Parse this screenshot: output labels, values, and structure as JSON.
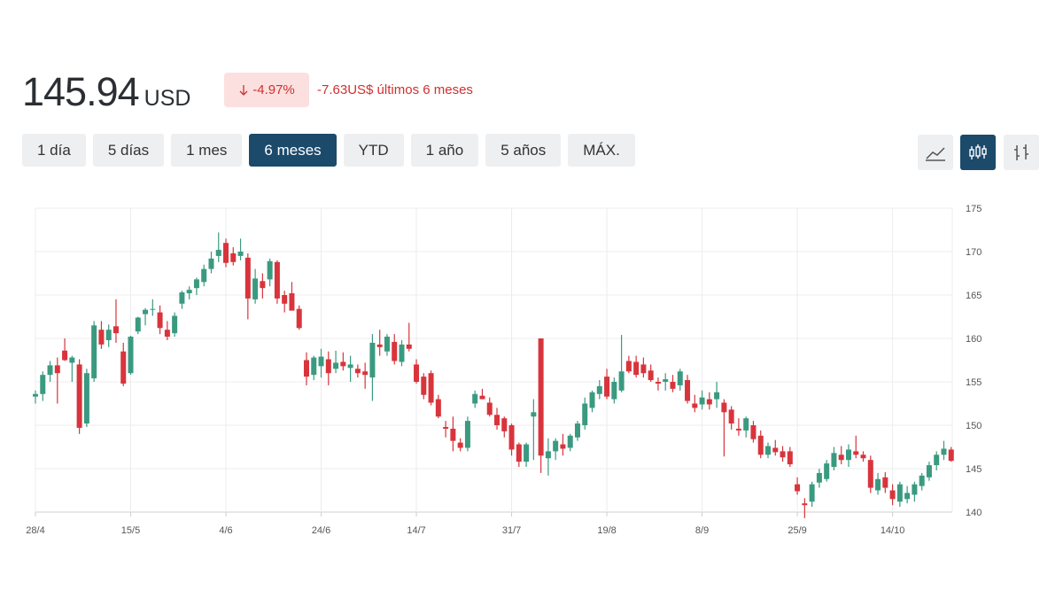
{
  "header": {
    "price": "145.94",
    "currency": "USD",
    "change_pct": "-4.97%",
    "change_abs": "-7.63",
    "change_period": "US$ últimos 6 meses"
  },
  "ranges": [
    {
      "label": "1 día",
      "selected": false
    },
    {
      "label": "5 días",
      "selected": false
    },
    {
      "label": "1 mes",
      "selected": false
    },
    {
      "label": "6 meses",
      "selected": true
    },
    {
      "label": "YTD",
      "selected": false
    },
    {
      "label": "1 año",
      "selected": false
    },
    {
      "label": "5 años",
      "selected": false
    },
    {
      "label": "MÁX.",
      "selected": false
    }
  ],
  "chart_data": {
    "type": "candlestick",
    "categories": [
      "28/4",
      null,
      null,
      null,
      null,
      null,
      null,
      null,
      null,
      null,
      null,
      null,
      null,
      "15/5",
      null,
      null,
      null,
      null,
      null,
      null,
      null,
      null,
      null,
      null,
      null,
      null,
      "4/6",
      null,
      null,
      null,
      null,
      null,
      null,
      null,
      null,
      null,
      null,
      null,
      null,
      "24/6",
      null,
      null,
      null,
      null,
      null,
      null,
      null,
      null,
      null,
      null,
      null,
      null,
      "14/7",
      null,
      null,
      null,
      null,
      null,
      null,
      null,
      null,
      null,
      null,
      null,
      null,
      "31/7",
      null,
      null,
      null,
      null,
      null,
      null,
      null,
      null,
      null,
      null,
      null,
      null,
      "19/8",
      null,
      null,
      null,
      null,
      null,
      null,
      null,
      null,
      null,
      null,
      null,
      null,
      "8/9",
      null,
      null,
      null,
      null,
      null,
      null,
      null,
      null,
      null,
      null,
      null,
      null,
      "25/9",
      null,
      null,
      null,
      null,
      null,
      null,
      null,
      null,
      null,
      null,
      null,
      null,
      "14/10",
      null,
      null,
      null,
      null,
      null,
      null,
      null,
      null
    ],
    "open": [
      153.3,
      153.6,
      155.8,
      156.9,
      158.6,
      157.2,
      157.0,
      150.2,
      155.4,
      161.0,
      159.8,
      161.4,
      158.5,
      156.0,
      160.8,
      162.8,
      163.3,
      163.0,
      161.0,
      160.6,
      164.0,
      165.2,
      165.8,
      166.5,
      168.0,
      169.5,
      171.0,
      169.8,
      169.5,
      169.3,
      164.5,
      166.6,
      166.8,
      168.8,
      165.0,
      165.2,
      163.4,
      157.5,
      155.8,
      156.8,
      157.6,
      156.5,
      157.3,
      156.6,
      156.5,
      156.2,
      155.5,
      159.3,
      158.5,
      159.6,
      157.3,
      159.3,
      157.0,
      155.6,
      156.0,
      153.0,
      149.8,
      149.6,
      148.0,
      147.4,
      152.5,
      153.4,
      152.6,
      151.2,
      150.8,
      150.0,
      147.8,
      145.8,
      151.0,
      160.0,
      146.2,
      147.0,
      147.8,
      147.4,
      148.6,
      150.0,
      152.0,
      153.6,
      155.6,
      153.0,
      154.0,
      157.4,
      157.3,
      157.0,
      156.3,
      155.0,
      155.0,
      155.0,
      154.6,
      155.2,
      152.5,
      152.4,
      153.0,
      153.0,
      152.6,
      151.8,
      149.6,
      149.4,
      150.0,
      148.8,
      146.6,
      147.4,
      147.0,
      147.0,
      143.2,
      141.0,
      141.2,
      143.4,
      143.8,
      145.2,
      146.6,
      146.0,
      147.0,
      146.6,
      146.0,
      142.5,
      144.0,
      142.5,
      141.2,
      141.5,
      142.0,
      143.0,
      144.0,
      145.4,
      146.6,
      147.2
    ],
    "high": [
      154.0,
      156.2,
      157.4,
      157.8,
      160.0,
      158.0,
      157.6,
      156.5,
      162.0,
      162.0,
      161.6,
      164.5,
      159.5,
      160.3,
      162.5,
      163.5,
      164.5,
      163.8,
      162.0,
      163.0,
      165.5,
      166.0,
      167.0,
      168.5,
      170.0,
      172.2,
      171.5,
      170.5,
      171.5,
      169.8,
      168.0,
      167.5,
      169.2,
      169.0,
      165.5,
      166.5,
      163.8,
      158.4,
      158.0,
      158.8,
      158.5,
      158.6,
      158.4,
      158.0,
      157.0,
      157.2,
      160.5,
      161.0,
      160.5,
      160.5,
      159.8,
      161.8,
      157.6,
      156.0,
      156.3,
      153.5,
      150.5,
      151.0,
      148.5,
      151.0,
      154.0,
      154.2,
      153.2,
      152.0,
      151.0,
      150.2,
      148.0,
      148.0,
      153.0,
      160.0,
      148.5,
      148.5,
      149.0,
      149.0,
      150.5,
      153.2,
      154.0,
      155.2,
      156.5,
      155.5,
      160.4,
      158.0,
      158.0,
      157.8,
      157.0,
      155.5,
      156.0,
      155.8,
      156.5,
      155.8,
      153.5,
      154.0,
      153.8,
      155.0,
      153.0,
      152.2,
      150.8,
      151.0,
      150.5,
      149.4,
      148.0,
      148.3,
      147.6,
      147.5,
      144.0,
      141.6,
      143.5,
      145.0,
      146.0,
      147.5,
      147.6,
      147.8,
      148.8,
      147.0,
      146.5,
      144.5,
      144.6,
      143.2,
      143.5,
      143.0,
      143.5,
      144.5,
      145.8,
      147.0,
      148.2,
      147.5
    ],
    "low": [
      152.5,
      152.8,
      155.0,
      152.5,
      157.4,
      155.0,
      149.0,
      149.8,
      155.0,
      158.8,
      159.0,
      159.5,
      154.5,
      155.8,
      160.5,
      161.5,
      162.6,
      160.5,
      159.8,
      160.2,
      163.4,
      164.5,
      165.0,
      166.0,
      167.5,
      168.8,
      168.2,
      168.4,
      169.0,
      162.2,
      164.0,
      164.6,
      166.0,
      164.0,
      163.0,
      163.5,
      161.0,
      154.6,
      155.2,
      155.5,
      154.6,
      156.0,
      156.3,
      155.0,
      155.5,
      154.2,
      152.8,
      158.0,
      158.0,
      157.0,
      156.8,
      158.5,
      154.8,
      153.0,
      152.3,
      150.8,
      148.6,
      147.0,
      147.0,
      147.0,
      152.0,
      153.0,
      151.0,
      149.5,
      148.6,
      146.5,
      145.2,
      145.2,
      146.0,
      144.5,
      144.2,
      146.0,
      146.5,
      147.0,
      148.2,
      149.5,
      151.5,
      153.0,
      153.0,
      152.5,
      153.8,
      156.0,
      155.5,
      155.5,
      155.0,
      154.0,
      154.0,
      153.8,
      154.0,
      152.5,
      151.5,
      151.8,
      151.8,
      152.0,
      146.4,
      149.5,
      148.8,
      148.6,
      148.0,
      146.2,
      146.2,
      146.5,
      145.8,
      145.2,
      142.0,
      139.3,
      140.6,
      142.8,
      143.5,
      144.8,
      145.5,
      145.2,
      146.2,
      145.8,
      142.2,
      142.0,
      142.2,
      140.8,
      140.6,
      141.0,
      141.2,
      142.5,
      143.6,
      144.8,
      146.0,
      145.8
    ],
    "close": [
      153.6,
      155.8,
      156.9,
      156.0,
      157.5,
      157.8,
      149.7,
      156.0,
      161.5,
      159.3,
      161.0,
      160.6,
      154.8,
      160.2,
      162.4,
      163.3,
      163.4,
      161.2,
      160.2,
      162.6,
      165.3,
      165.6,
      166.8,
      168.0,
      169.2,
      170.2,
      168.7,
      168.8,
      170.0,
      164.6,
      166.9,
      165.8,
      168.9,
      164.6,
      164.0,
      163.2,
      161.2,
      155.6,
      157.8,
      157.9,
      156.0,
      157.2,
      156.8,
      157.0,
      156.0,
      155.8,
      159.5,
      159.0,
      160.2,
      157.4,
      159.3,
      158.8,
      155.0,
      153.5,
      152.6,
      151.0,
      149.6,
      148.2,
      147.4,
      150.5,
      153.6,
      153.0,
      151.2,
      150.0,
      149.3,
      147.2,
      145.8,
      147.8,
      151.5,
      146.5,
      147.0,
      148.2,
      147.3,
      148.8,
      150.2,
      152.5,
      153.8,
      154.5,
      153.3,
      155.0,
      156.2,
      156.2,
      155.8,
      156.0,
      155.2,
      154.8,
      155.3,
      154.2,
      156.2,
      152.8,
      152.0,
      153.2,
      152.4,
      153.8,
      151.5,
      150.2,
      149.4,
      150.8,
      148.4,
      146.6,
      147.6,
      146.9,
      146.3,
      145.5,
      142.4,
      140.8,
      143.2,
      144.5,
      145.6,
      146.8,
      146.0,
      147.2,
      146.6,
      146.2,
      142.8,
      143.8,
      142.8,
      141.5,
      143.2,
      142.2,
      143.2,
      144.2,
      145.4,
      146.6,
      147.3,
      145.9
    ],
    "up_color": "#3a9a80",
    "down_color": "#d8343c",
    "ylim": [
      140,
      175
    ],
    "yticks": [
      140,
      145,
      150,
      155,
      160,
      165,
      170,
      175
    ],
    "grid": true
  }
}
